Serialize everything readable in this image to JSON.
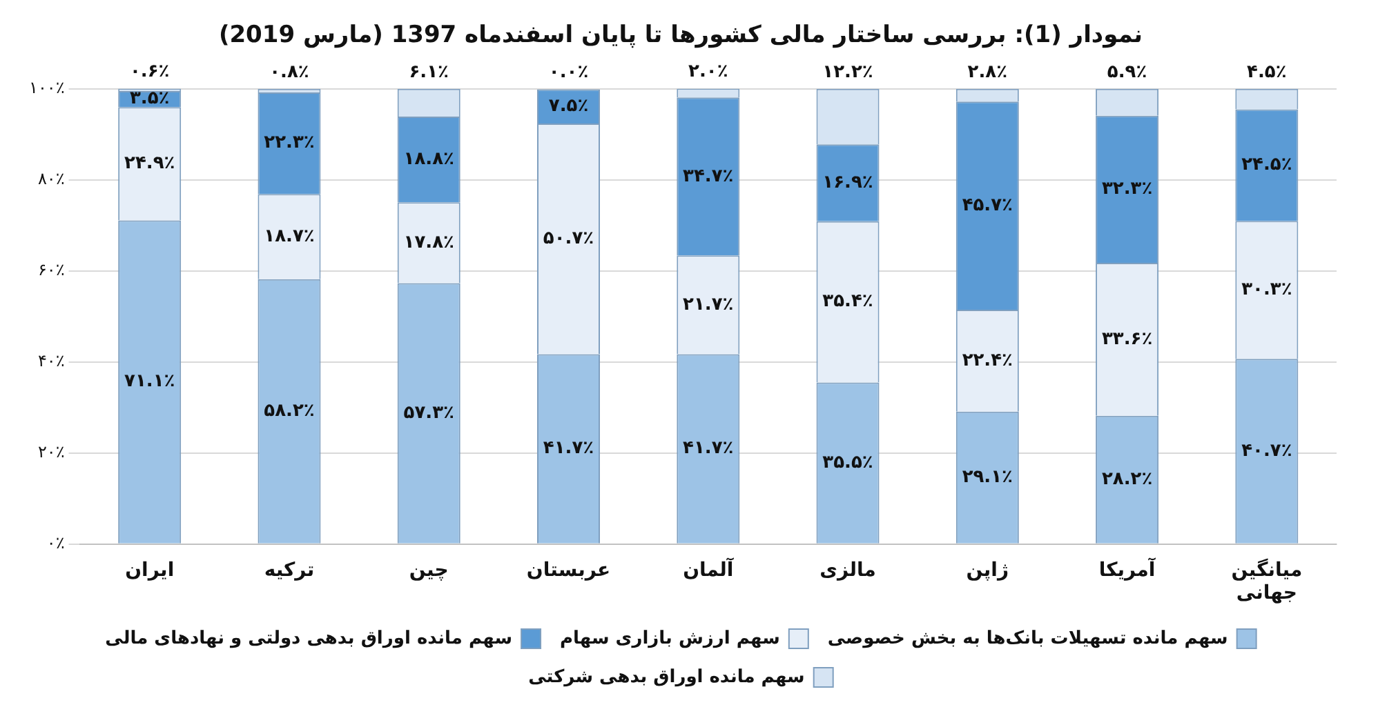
{
  "chart_data": {
    "type": "bar",
    "stacked": true,
    "title": "نمودار (1): بررسی ساختار مالی کشورها تا پایان اسفندماه 1397 (مارس 2019)",
    "categories": [
      "ایران",
      "ترکیه",
      "چین",
      "عربستان",
      "آلمان",
      "مالزی",
      "ژاپن",
      "آمریکا",
      "میانگین جهانی"
    ],
    "series": [
      {
        "name": "سهم مانده تسهیلات بانک‌ها به بخش خصوصی",
        "color": "#9dc3e6",
        "values": [
          71.1,
          58.2,
          57.3,
          41.7,
          41.7,
          35.5,
          29.1,
          28.2,
          40.7
        ],
        "value_labels": [
          "۷۱.۱٪",
          "۵۸.۲٪",
          "۵۷.۳٪",
          "۴۱.۷٪",
          "۴۱.۷٪",
          "۳۵.۵٪",
          "۲۹.۱٪",
          "۲۸.۲٪",
          "۴۰.۷٪"
        ]
      },
      {
        "name": "سهم ارزش بازاری سهام",
        "color": "#e6eef8",
        "values": [
          24.9,
          18.7,
          17.8,
          50.7,
          21.7,
          35.4,
          22.4,
          33.6,
          30.3
        ],
        "value_labels": [
          "۲۴.۹٪",
          "۱۸.۷٪",
          "۱۷.۸٪",
          "۵۰.۷٪",
          "۲۱.۷٪",
          "۳۵.۴٪",
          "۲۲.۴٪",
          "۳۳.۶٪",
          "۳۰.۳٪"
        ]
      },
      {
        "name": "سهم مانده اوراق بدهی دولتی و نهادهای مالی",
        "color": "#5b9bd5",
        "values": [
          3.5,
          22.3,
          18.8,
          7.5,
          34.7,
          16.9,
          45.7,
          32.3,
          24.5
        ],
        "value_labels": [
          "۳.۵٪",
          "۲۲.۳٪",
          "۱۸.۸٪",
          "۷.۵٪",
          "۳۴.۷٪",
          "۱۶.۹٪",
          "۴۵.۷٪",
          "۳۲.۳٪",
          "۲۴.۵٪"
        ]
      },
      {
        "name": "سهم مانده اوراق بدهی شرکتی",
        "color": "#d6e4f3",
        "values": [
          0.6,
          0.8,
          6.1,
          0.0,
          2.0,
          12.2,
          2.8,
          5.9,
          4.5
        ],
        "value_labels": [
          "۰.۶٪",
          "۰.۸٪",
          "۶.۱٪",
          "۰.۰٪",
          "۲.۰٪",
          "۱۲.۲٪",
          "۲.۸٪",
          "۵.۹٪",
          "۴.۵٪"
        ]
      }
    ],
    "ylim": [
      0,
      100
    ],
    "yticks": [
      {
        "value": 0,
        "label": "۰٪"
      },
      {
        "value": 20,
        "label": "۲۰٪"
      },
      {
        "value": 40,
        "label": "۴۰٪"
      },
      {
        "value": 60,
        "label": "۶۰٪"
      },
      {
        "value": 80,
        "label": "۸۰٪"
      },
      {
        "value": 100,
        "label": "۱۰۰٪"
      }
    ],
    "grid": "y",
    "legend": "bottom"
  }
}
